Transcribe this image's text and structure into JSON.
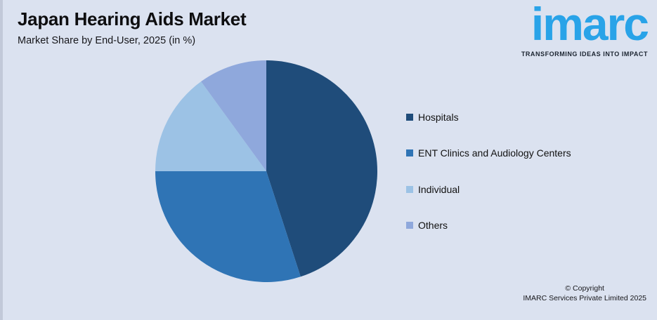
{
  "header": {
    "title": "Japan Hearing Aids Market",
    "subtitle": "Market Share by End-User, 2025 (in %)"
  },
  "logo": {
    "brand": "imarc",
    "tagline": "TRANSFORMING IDEAS INTO IMPACT",
    "brand_color": "#29A3E8",
    "tagline_color": "#1b2430"
  },
  "chart_data": {
    "type": "pie",
    "title": "Japan Hearing Aids Market",
    "subtitle": "Market Share by End-User, 2025 (in %)",
    "unit": "%",
    "start_angle_deg": 0,
    "direction": "clockwise",
    "legend_position": "right",
    "values_labeled_on_chart": false,
    "slices": [
      {
        "label": "Hospitals",
        "value": 45,
        "color": "#1F4C7A"
      },
      {
        "label": "ENT Clinics and Audiology Centers",
        "value": 30,
        "color": "#2F74B5"
      },
      {
        "label": "Individual",
        "value": 15,
        "color": "#9CC2E5"
      },
      {
        "label": "Others",
        "value": 10,
        "color": "#8FA8DC"
      }
    ]
  },
  "footer": {
    "copyright_line1": "© Copyright",
    "copyright_line2": "IMARC Services Private Limited 2025"
  },
  "colors": {
    "background": "#dbe2f0",
    "text": "#121212"
  }
}
